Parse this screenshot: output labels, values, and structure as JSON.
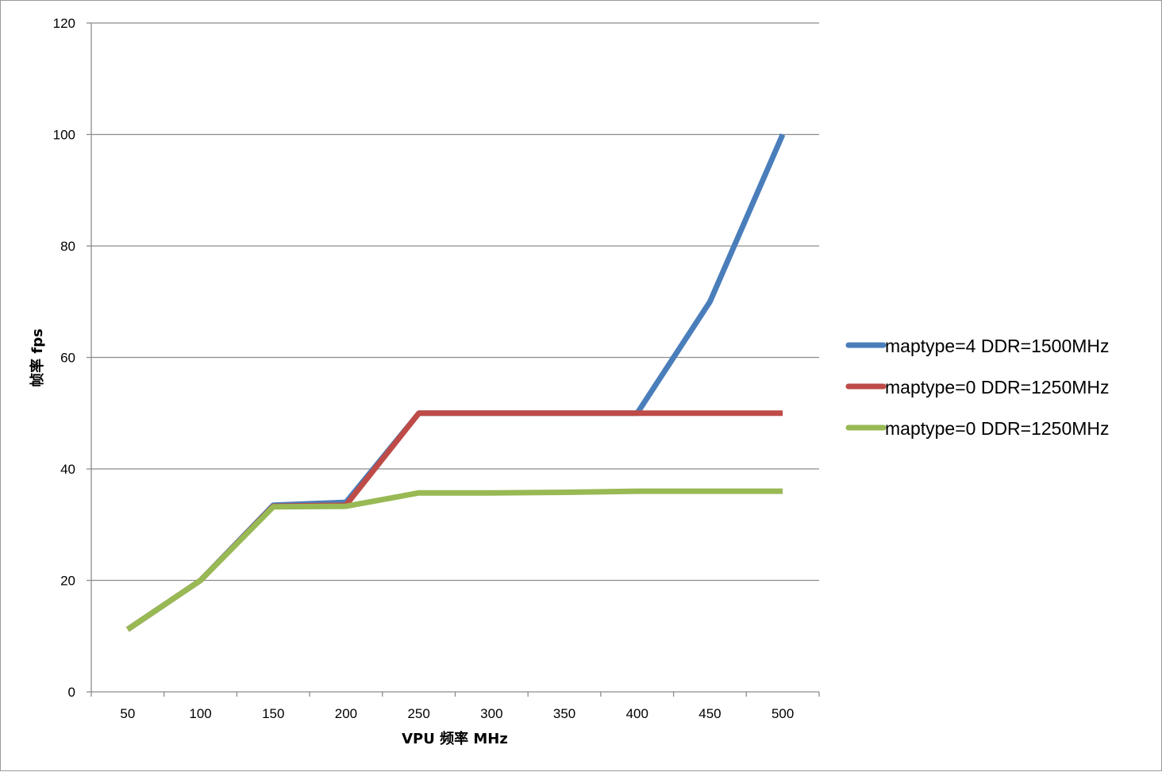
{
  "chart_data": {
    "type": "line",
    "xlabel": "VPU  频率  MHz",
    "ylabel": "帧率  fps",
    "categories": [
      "50",
      "100",
      "150",
      "200",
      "250",
      "300",
      "350",
      "400",
      "450",
      "500"
    ],
    "ylim": [
      0,
      120
    ],
    "yticks": [
      "0",
      "20",
      "40",
      "60",
      "80",
      "100",
      "120"
    ],
    "grid": "horizontal",
    "legend_position": "right",
    "series": [
      {
        "name": "maptype=4 DDR=1500MHz",
        "color": "#4a7ebb",
        "values": [
          11.2,
          20,
          33.5,
          34,
          50,
          50,
          50,
          50,
          70,
          100
        ]
      },
      {
        "name": "maptype=0 DDR=1250MHz",
        "color": "#be4b48",
        "values": [
          11.2,
          20,
          33.3,
          33.5,
          50,
          50,
          50,
          50,
          50,
          50
        ]
      },
      {
        "name": "maptype=0 DDR=1250MHz",
        "color": "#98b954",
        "values": [
          11.2,
          20,
          33.2,
          33.3,
          35.7,
          35.7,
          35.8,
          36,
          36,
          36
        ]
      }
    ]
  }
}
